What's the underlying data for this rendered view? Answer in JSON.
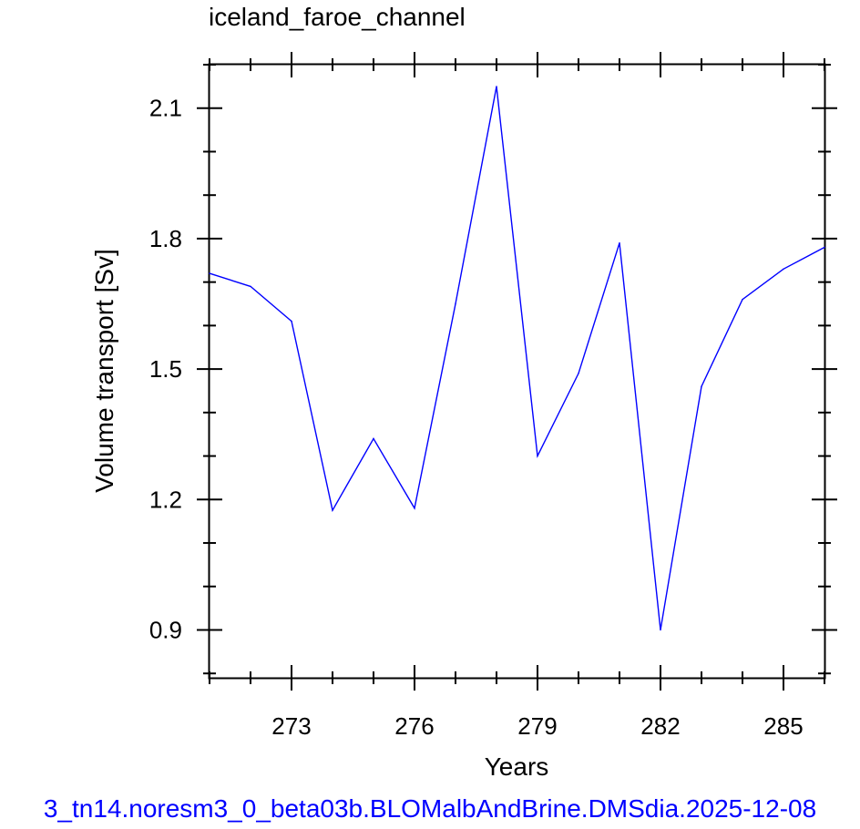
{
  "chart_data": {
    "type": "line",
    "title": "iceland_faroe_channel",
    "xlabel": "Years",
    "ylabel": "Volume transport [Sv]",
    "xlim": [
      271,
      286
    ],
    "ylim": [
      0.79,
      2.2
    ],
    "x_ticks_major": [
      273,
      276,
      279,
      282,
      285
    ],
    "x_ticks_minor_step": 1,
    "y_ticks_major": [
      0.9,
      1.2,
      1.5,
      1.8,
      2.1
    ],
    "y_ticks_minor_step": 0.1,
    "x_tick_labels": [
      "273",
      "276",
      "279",
      "282",
      "285"
    ],
    "y_tick_labels": [
      "0.9",
      "1.2",
      "1.5",
      "1.8",
      "2.1"
    ],
    "grid": false,
    "series": [
      {
        "color": "#0000ff",
        "x": [
          271,
          272,
          273,
          274,
          275,
          276,
          277,
          278,
          279,
          280,
          281,
          282,
          283,
          284,
          285,
          286
        ],
        "y": [
          1.72,
          1.69,
          1.61,
          1.175,
          1.34,
          1.18,
          1.65,
          2.15,
          1.3,
          1.49,
          1.79,
          0.9,
          1.46,
          1.66,
          1.73,
          1.78
        ]
      }
    ]
  },
  "footer": {
    "text": "3_tn14.noresm3_0_beta03b.BLOMalbAndBrine.DMSdia.2025-12-08",
    "color": "#0000ff"
  }
}
